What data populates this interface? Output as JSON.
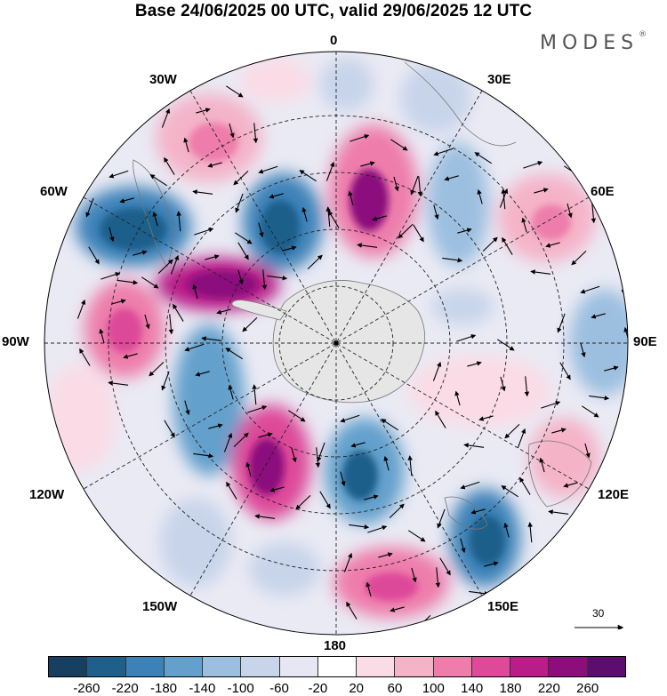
{
  "title": "Base 24/06/2025 00 UTC, valid 29/06/2025 12 UTC",
  "brand": "MODES",
  "brand_mark": "®",
  "longitude_labels": {
    "l0": "0",
    "l30e": "30E",
    "l60e": "60E",
    "l90e": "90E",
    "l120e": "120E",
    "l150e": "150E",
    "l180": "180",
    "l150w": "150W",
    "l120w": "120W",
    "l90w": "90W",
    "l60w": "60W",
    "l30w": "30W"
  },
  "reference_vector": "30",
  "colorbar": {
    "colors": [
      "#173f5f",
      "#1f5f8b",
      "#3c82b8",
      "#64a0cc",
      "#9cbfe0",
      "#c7d4ea",
      "#e7e7f4",
      "#ffffff",
      "#fbdbe5",
      "#f5b3c8",
      "#ee7dab",
      "#dd4a99",
      "#b91d88",
      "#8c0e7d",
      "#5d0c70"
    ],
    "ticks": [
      "-260",
      "-220",
      "-180",
      "-140",
      "-100",
      "-60",
      "-20",
      "20",
      "60",
      "100",
      "140",
      "180",
      "220",
      "260"
    ]
  },
  "colors": {
    "background": "#ffffff",
    "antarctica": "#e6e6e6",
    "coastline": "#777777"
  }
}
